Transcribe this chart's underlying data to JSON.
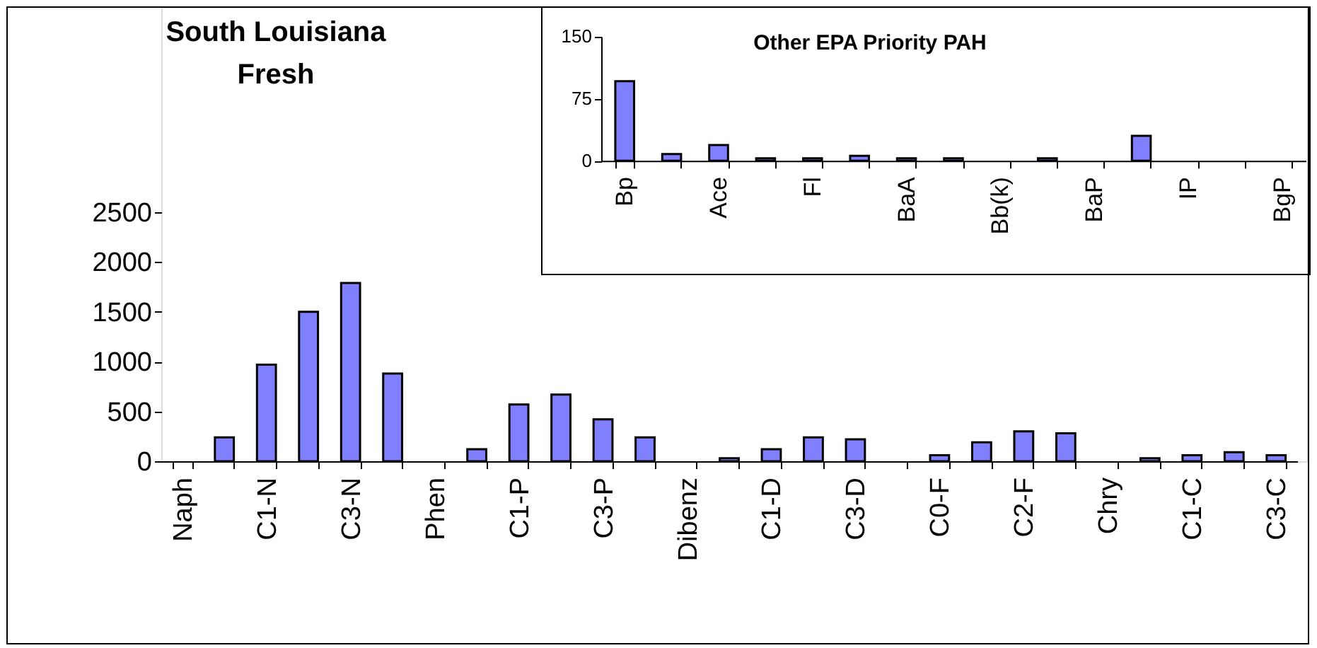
{
  "chart_data": [
    {
      "type": "bar",
      "title": "South Louisiana Fresh",
      "categories": [
        "Naph",
        null,
        "C1-N",
        null,
        "C3-N",
        null,
        "Phen",
        null,
        "C1-P",
        null,
        "C3-P",
        null,
        "Dibenz",
        null,
        "C1-D",
        null,
        "C3-D",
        null,
        "C0-F",
        null,
        "C2-F",
        null,
        "Chry",
        null,
        "C1-C",
        null,
        "C3-C"
      ],
      "values": [
        null,
        240,
        970,
        1500,
        1790,
        880,
        null,
        120,
        570,
        670,
        420,
        240,
        null,
        30,
        120,
        240,
        220,
        null,
        60,
        190,
        300,
        280,
        null,
        30,
        60,
        90,
        60
      ],
      "color": "#8080ff",
      "ylim": [
        0,
        2500
      ],
      "yticks": [
        0,
        500,
        1000,
        1500,
        2000,
        2500
      ]
    },
    {
      "type": "bar",
      "title": "Other EPA Priority PAH",
      "categories": [
        "Bp",
        null,
        "Ace",
        null,
        "Fl",
        null,
        "BaA",
        null,
        "Bb(k)",
        null,
        "BaP",
        null,
        "IP",
        null,
        "BgP"
      ],
      "values": [
        96,
        8,
        19,
        3,
        3,
        6,
        3,
        3,
        null,
        3,
        null,
        30,
        null,
        null,
        null
      ],
      "color": "#8080ff",
      "ylim": [
        0,
        150
      ],
      "yticks": [
        0,
        75,
        150
      ]
    }
  ]
}
